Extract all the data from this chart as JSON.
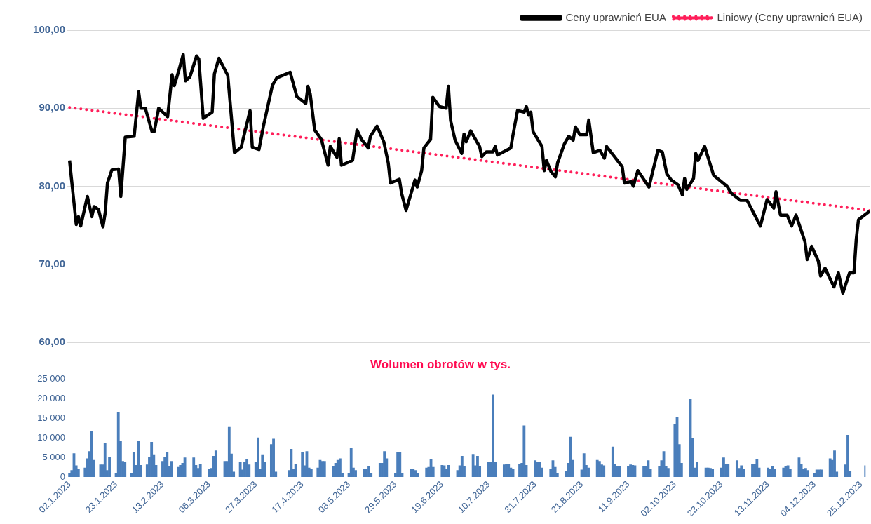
{
  "chart_data": [
    {
      "type": "line",
      "legend": "top right",
      "grid": "y",
      "marker": "none",
      "tick_labels": "y",
      "xlim": [
        "2023-01-01",
        "2023-12-27"
      ],
      "ylim": [
        60,
        100
      ],
      "yticks": [
        {
          "value": 60,
          "label": "60,00"
        },
        {
          "value": 70,
          "label": "70,00"
        },
        {
          "value": 80,
          "label": "80,00"
        },
        {
          "value": 90,
          "label": "90,00"
        },
        {
          "value": 100,
          "label": "100,00"
        }
      ],
      "series": [
        {
          "name": "Ceny uprawnień EUA",
          "color": "#000000",
          "line_style": "solid",
          "x": [
            "2023-01-02",
            "2023-01-05",
            "2023-01-06",
            "2023-01-07",
            "2023-01-10",
            "2023-01-12",
            "2023-01-13",
            "2023-01-15",
            "2023-01-17",
            "2023-01-18",
            "2023-01-19",
            "2023-01-21",
            "2023-01-24",
            "2023-01-25",
            "2023-01-27",
            "2023-01-31",
            "2023-02-02",
            "2023-02-03",
            "2023-02-05",
            "2023-02-08",
            "2023-02-09",
            "2023-02-11",
            "2023-02-15",
            "2023-02-17",
            "2023-02-18",
            "2023-02-20",
            "2023-02-22",
            "2023-02-23",
            "2023-02-25",
            "2023-02-28",
            "2023-03-01",
            "2023-03-03",
            "2023-03-07",
            "2023-03-08",
            "2023-03-10",
            "2023-03-14",
            "2023-03-17",
            "2023-03-20",
            "2023-03-24",
            "2023-03-25",
            "2023-03-28",
            "2023-03-30",
            "2023-04-03",
            "2023-04-05",
            "2023-04-11",
            "2023-04-14",
            "2023-04-18",
            "2023-04-19",
            "2023-04-20",
            "2023-04-22",
            "2023-04-25",
            "2023-04-28",
            "2023-04-29",
            "2023-05-02",
            "2023-05-03",
            "2023-05-04",
            "2023-05-09",
            "2023-05-11",
            "2023-05-13",
            "2023-05-16",
            "2023-05-17",
            "2023-05-20",
            "2023-05-23",
            "2023-05-25",
            "2023-05-26",
            "2023-05-30",
            "2023-05-31",
            "2023-06-02",
            "2023-06-06",
            "2023-06-07",
            "2023-06-09",
            "2023-06-10",
            "2023-06-13",
            "2023-06-14",
            "2023-06-17",
            "2023-06-20",
            "2023-06-21",
            "2023-06-22",
            "2023-06-24",
            "2023-06-27",
            "2023-06-28",
            "2023-06-29",
            "2023-07-01",
            "2023-07-05",
            "2023-07-06",
            "2023-07-08",
            "2023-07-11",
            "2023-07-12",
            "2023-07-13",
            "2023-07-19",
            "2023-07-20",
            "2023-07-22",
            "2023-07-25",
            "2023-07-26",
            "2023-07-27",
            "2023-07-28",
            "2023-07-29",
            "2023-08-02",
            "2023-08-03",
            "2023-08-04",
            "2023-08-06",
            "2023-08-08",
            "2023-08-09",
            "2023-08-12",
            "2023-08-14",
            "2023-08-16",
            "2023-08-17",
            "2023-08-19",
            "2023-08-22",
            "2023-08-23",
            "2023-08-25",
            "2023-08-28",
            "2023-08-30",
            "2023-08-31",
            "2023-09-07",
            "2023-09-08",
            "2023-09-11",
            "2023-09-12",
            "2023-09-14",
            "2023-09-19",
            "2023-09-23",
            "2023-09-25",
            "2023-09-27",
            "2023-09-29",
            "2023-10-02",
            "2023-10-04",
            "2023-10-05",
            "2023-10-06",
            "2023-10-09",
            "2023-10-10",
            "2023-10-11",
            "2023-10-14",
            "2023-10-18",
            "2023-10-24",
            "2023-10-26",
            "2023-10-30",
            "2023-11-02",
            "2023-11-08",
            "2023-11-11",
            "2023-11-14",
            "2023-11-15",
            "2023-11-17",
            "2023-11-20",
            "2023-11-22",
            "2023-11-24",
            "2023-11-28",
            "2023-11-29",
            "2023-12-01",
            "2023-12-04",
            "2023-12-05",
            "2023-12-07",
            "2023-12-11",
            "2023-12-13",
            "2023-12-15",
            "2023-12-18",
            "2023-12-20",
            "2023-12-21",
            "2023-12-22",
            "2023-12-27"
          ],
          "values": [
            83.3,
            75.1,
            76.1,
            74.9,
            78.7,
            76.1,
            77.4,
            77,
            74.8,
            76.6,
            80.4,
            82.1,
            82.2,
            78.7,
            86.3,
            86.4,
            92.1,
            90,
            90,
            87,
            87,
            90,
            88.9,
            94.3,
            92.9,
            94.8,
            96.9,
            93.5,
            94,
            96.7,
            96.3,
            88.7,
            89.5,
            94.4,
            96.4,
            94.2,
            84.3,
            85,
            89.7,
            85,
            84.7,
            87.7,
            92.9,
            93.9,
            94.6,
            91.5,
            90.6,
            92.8,
            91.8,
            87.2,
            86,
            82.7,
            85.1,
            83.7,
            86.1,
            82.7,
            83.3,
            87.2,
            86,
            84.9,
            86.4,
            87.7,
            85.7,
            83,
            80.4,
            80.9,
            79.1,
            76.9,
            80.8,
            79.9,
            82,
            84.9,
            86,
            91.4,
            90.2,
            90,
            92.8,
            88.4,
            85.9,
            84.2,
            86.7,
            85.7,
            87.1,
            85.1,
            83.8,
            84.4,
            84.4,
            85.1,
            84,
            84.9,
            86.6,
            89.7,
            89.5,
            90.2,
            89.1,
            89.5,
            87,
            85.1,
            82,
            83.3,
            81.9,
            81.2,
            83,
            85.4,
            86.4,
            85.9,
            87.6,
            86.6,
            86.6,
            88.5,
            84.3,
            84.6,
            83.6,
            85.1,
            82.5,
            80.4,
            80.6,
            80,
            82,
            79.9,
            84.6,
            84.4,
            81.6,
            80.8,
            80.2,
            78.9,
            81,
            79.6,
            81,
            84.2,
            83.3,
            85.1,
            81.4,
            80,
            79.1,
            78.2,
            78.2,
            74.9,
            78.3,
            77.2,
            79.3,
            76.3,
            76.3,
            74.9,
            76.3,
            72.9,
            70.6,
            72.3,
            70.4,
            68.5,
            69.5,
            67.1,
            68.9,
            66.3,
            68.9,
            68.9,
            73.2,
            75.7,
            76.8
          ]
        },
        {
          "name": "Liniowy (Ceny uprawnień EUA)",
          "color": "#ff1f5a",
          "line_style": "dotted",
          "x": [
            "2023-01-02",
            "2023-12-27"
          ],
          "values": [
            90.1,
            76.9
          ]
        }
      ]
    },
    {
      "type": "bar",
      "title": "Wolumen obrotów w tys.",
      "color": "#4a7ebb",
      "xlim": [
        "2023-01-01",
        "2023-12-27"
      ],
      "xticks": [
        {
          "value": "2023-01-02",
          "label": "02.1.2023"
        },
        {
          "value": "2023-01-23",
          "label": "23.1.2023"
        },
        {
          "value": "2023-02-13",
          "label": "13.2.2023"
        },
        {
          "value": "2023-03-06",
          "label": "06.3.2023"
        },
        {
          "value": "2023-03-27",
          "label": "27.3.2023"
        },
        {
          "value": "2023-04-17",
          "label": "17.4.2023"
        },
        {
          "value": "2023-05-08",
          "label": "08.5.2023"
        },
        {
          "value": "2023-05-29",
          "label": "29.5.2023"
        },
        {
          "value": "2023-06-19",
          "label": "19.6.2023"
        },
        {
          "value": "2023-07-10",
          "label": "10.7.2023"
        },
        {
          "value": "2023-07-31",
          "label": "31.7.2023"
        },
        {
          "value": "2023-08-21",
          "label": "21.8.2023"
        },
        {
          "value": "2023-09-11",
          "label": "11.9.2023"
        },
        {
          "value": "2023-10-02",
          "label": "02.10.2023"
        },
        {
          "value": "2023-10-23",
          "label": "23.10.2023"
        },
        {
          "value": "2023-11-13",
          "label": "13.11.2023"
        },
        {
          "value": "2023-12-04",
          "label": "04.12.2023"
        },
        {
          "value": "2023-12-25",
          "label": "25.12.2023"
        }
      ],
      "ylim": [
        0,
        25000
      ],
      "yticks": [
        0,
        {
          "value": 5000,
          "label": "5 000"
        },
        {
          "value": 10000,
          "label": "10 000"
        },
        {
          "value": 15000,
          "label": "15 000"
        },
        {
          "value": 20000,
          "label": "20 000"
        },
        {
          "value": 25000,
          "label": "25 000"
        }
      ],
      "x": [
        "2023-01-02",
        "2023-01-03",
        "2023-01-04",
        "2023-01-05",
        "2023-01-06",
        "2023-01-09",
        "2023-01-10",
        "2023-01-11",
        "2023-01-12",
        "2023-01-13",
        "2023-01-16",
        "2023-01-17",
        "2023-01-18",
        "2023-01-19",
        "2023-01-20",
        "2023-01-23",
        "2023-01-24",
        "2023-01-25",
        "2023-01-26",
        "2023-01-27",
        "2023-01-30",
        "2023-01-31",
        "2023-02-01",
        "2023-02-02",
        "2023-02-03",
        "2023-02-06",
        "2023-02-07",
        "2023-02-08",
        "2023-02-09",
        "2023-02-10",
        "2023-02-13",
        "2023-02-14",
        "2023-02-15",
        "2023-02-16",
        "2023-02-17",
        "2023-02-20",
        "2023-02-21",
        "2023-02-22",
        "2023-02-23",
        "2023-02-27",
        "2023-02-28",
        "2023-03-01",
        "2023-03-02",
        "2023-03-06",
        "2023-03-07",
        "2023-03-08",
        "2023-03-09",
        "2023-03-13",
        "2023-03-14",
        "2023-03-15",
        "2023-03-16",
        "2023-03-17",
        "2023-03-20",
        "2023-03-21",
        "2023-03-22",
        "2023-03-23",
        "2023-03-24",
        "2023-03-27",
        "2023-03-28",
        "2023-03-29",
        "2023-03-30",
        "2023-03-31",
        "2023-04-03",
        "2023-04-04",
        "2023-04-05",
        "2023-04-11",
        "2023-04-12",
        "2023-04-13",
        "2023-04-14",
        "2023-04-17",
        "2023-04-18",
        "2023-04-19",
        "2023-04-20",
        "2023-04-21",
        "2023-04-24",
        "2023-04-25",
        "2023-04-26",
        "2023-04-27",
        "2023-05-01",
        "2023-05-02",
        "2023-05-03",
        "2023-05-04",
        "2023-05-05",
        "2023-05-08",
        "2023-05-09",
        "2023-05-10",
        "2023-05-11",
        "2023-05-15",
        "2023-05-16",
        "2023-05-17",
        "2023-05-18",
        "2023-05-22",
        "2023-05-23",
        "2023-05-24",
        "2023-05-25",
        "2023-05-29",
        "2023-05-30",
        "2023-05-31",
        "2023-06-01",
        "2023-06-05",
        "2023-06-06",
        "2023-06-07",
        "2023-06-08",
        "2023-06-12",
        "2023-06-13",
        "2023-06-14",
        "2023-06-15",
        "2023-06-19",
        "2023-06-20",
        "2023-06-21",
        "2023-06-22",
        "2023-06-26",
        "2023-06-27",
        "2023-06-28",
        "2023-06-29",
        "2023-07-03",
        "2023-07-04",
        "2023-07-05",
        "2023-07-06",
        "2023-07-10",
        "2023-07-11",
        "2023-07-12",
        "2023-07-13",
        "2023-07-17",
        "2023-07-18",
        "2023-07-19",
        "2023-07-20",
        "2023-07-21",
        "2023-07-24",
        "2023-07-25",
        "2023-07-26",
        "2023-07-27",
        "2023-07-31",
        "2023-08-01",
        "2023-08-02",
        "2023-08-03",
        "2023-08-07",
        "2023-08-08",
        "2023-08-09",
        "2023-08-10",
        "2023-08-14",
        "2023-08-15",
        "2023-08-16",
        "2023-08-17",
        "2023-08-21",
        "2023-08-22",
        "2023-08-23",
        "2023-08-24",
        "2023-08-28",
        "2023-08-29",
        "2023-08-30",
        "2023-08-31",
        "2023-09-04",
        "2023-09-05",
        "2023-09-06",
        "2023-09-07",
        "2023-09-11",
        "2023-09-12",
        "2023-09-13",
        "2023-09-14",
        "2023-09-18",
        "2023-09-19",
        "2023-09-20",
        "2023-09-21",
        "2023-09-25",
        "2023-09-26",
        "2023-09-27",
        "2023-09-28",
        "2023-09-29",
        "2023-10-02",
        "2023-10-03",
        "2023-10-04",
        "2023-10-05",
        "2023-10-09",
        "2023-10-10",
        "2023-10-11",
        "2023-10-12",
        "2023-10-16",
        "2023-10-17",
        "2023-10-18",
        "2023-10-19",
        "2023-10-23",
        "2023-10-24",
        "2023-10-25",
        "2023-10-26",
        "2023-10-30",
        "2023-10-31",
        "2023-11-01",
        "2023-11-02",
        "2023-11-06",
        "2023-11-07",
        "2023-11-08",
        "2023-11-09",
        "2023-11-13",
        "2023-11-14",
        "2023-11-15",
        "2023-11-16",
        "2023-11-20",
        "2023-11-21",
        "2023-11-22",
        "2023-11-23",
        "2023-11-27",
        "2023-11-28",
        "2023-11-29",
        "2023-11-30",
        "2023-12-01",
        "2023-12-04",
        "2023-12-05",
        "2023-12-06",
        "2023-12-07",
        "2023-12-11",
        "2023-12-12",
        "2023-12-13",
        "2023-12-14",
        "2023-12-18",
        "2023-12-19",
        "2023-12-20",
        "2023-12-27"
      ],
      "values": [
        1000,
        1700,
        6000,
        2900,
        2000,
        2300,
        4700,
        6500,
        11700,
        4300,
        3100,
        3100,
        8700,
        1700,
        5000,
        900,
        16500,
        9100,
        4000,
        3800,
        900,
        6200,
        3000,
        9100,
        3000,
        3100,
        5100,
        8900,
        5700,
        3000,
        4000,
        5100,
        6200,
        2700,
        4000,
        2500,
        3000,
        3500,
        4900,
        4900,
        3000,
        2200,
        3300,
        2000,
        2200,
        5300,
        6700,
        4000,
        4000,
        12700,
        5900,
        1300,
        3800,
        1800,
        3800,
        4500,
        3100,
        3700,
        10000,
        2000,
        5700,
        3700,
        8300,
        9700,
        1300,
        1700,
        7100,
        2000,
        3300,
        6300,
        2900,
        6500,
        2300,
        2000,
        2300,
        4300,
        4000,
        4000,
        2700,
        3500,
        4300,
        4700,
        1000,
        1000,
        7300,
        2300,
        1700,
        2000,
        2000,
        2700,
        1000,
        3500,
        3500,
        6500,
        4700,
        1000,
        6200,
        6300,
        1000,
        2000,
        2100,
        1700,
        1000,
        2300,
        2500,
        4500,
        2500,
        3000,
        2900,
        2000,
        3000,
        1700,
        2900,
        5300,
        2700,
        5800,
        2900,
        5300,
        2700,
        3800,
        3800,
        21000,
        3800,
        3100,
        3300,
        3300,
        2300,
        2000,
        3300,
        3500,
        13100,
        3000,
        4200,
        3800,
        3800,
        2300,
        2000,
        4200,
        2500,
        1000,
        1500,
        3500,
        10200,
        4300,
        1800,
        6000,
        3000,
        2300,
        4300,
        4000,
        3100,
        2900,
        7700,
        3300,
        2700,
        2700,
        2700,
        3100,
        3000,
        2900,
        2700,
        2700,
        4200,
        2000,
        2700,
        4200,
        6500,
        2700,
        2200,
        13500,
        15300,
        8300,
        3500,
        19800,
        9800,
        2300,
        3700,
        2300,
        2300,
        2200,
        2000,
        2300,
        4900,
        3300,
        3300,
        4200,
        2200,
        2900,
        2000,
        3300,
        3300,
        4500,
        2300,
        2300,
        2000,
        2700,
        2000,
        2300,
        2700,
        2900,
        2000,
        4900,
        3300,
        2000,
        2200,
        1700,
        1000,
        1800,
        1800,
        1800,
        4700,
        4300,
        6700,
        1300,
        3100,
        10700,
        1500,
        2900
      ]
    }
  ]
}
